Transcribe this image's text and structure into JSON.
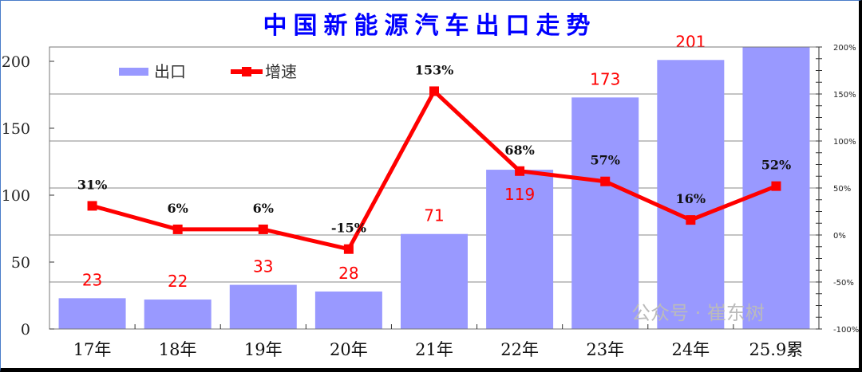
{
  "chart_data": {
    "type": "bar+line",
    "title": "中国新能源汽车出口走势",
    "categories": [
      "17年",
      "18年",
      "19年",
      "20年",
      "21年",
      "22年",
      "23年",
      "24年",
      "25.9累"
    ],
    "series": [
      {
        "name": "出口",
        "type": "bar",
        "axis": "left",
        "color": "#9999ff",
        "values": [
          23,
          22,
          33,
          28,
          71,
          119,
          173,
          201,
          null
        ],
        "labels": [
          "23",
          "22",
          "33",
          "28",
          "71",
          "119",
          "173",
          "201",
          ""
        ]
      },
      {
        "name": "增速",
        "type": "line",
        "axis": "right",
        "color": "#ff0000",
        "values": [
          31,
          6,
          6,
          -15,
          153,
          68,
          57,
          16,
          52
        ],
        "labels": [
          "31%",
          "6%",
          "6%",
          "-15%",
          "153%",
          "68%",
          "57%",
          "16%",
          "52%"
        ]
      }
    ],
    "last_bar_exceeds_axis": true,
    "left_axis": {
      "ylim": [
        0,
        210.7
      ],
      "ticks": [
        0,
        50,
        100,
        150,
        200
      ],
      "tick_labels": [
        "0",
        "50",
        "100",
        "150",
        "200"
      ]
    },
    "right_axis": {
      "ylim": [
        -100,
        200
      ],
      "ticks": [
        -100,
        -50,
        0,
        50,
        100,
        150,
        200
      ],
      "tick_labels": [
        "-100%",
        "-50%",
        "0%",
        "50%",
        "100%",
        "150%",
        "200%"
      ]
    },
    "grid": true,
    "legend": {
      "position": "top-left",
      "entries": [
        "出口",
        "增速"
      ]
    }
  },
  "watermark": "公众号 · 崔东树"
}
